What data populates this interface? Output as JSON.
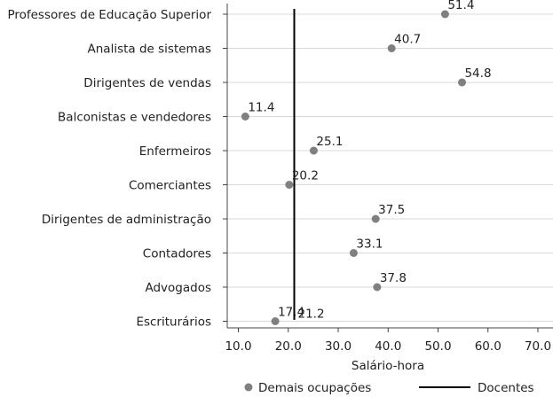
{
  "chart_data": {
    "type": "scatter",
    "orientation": "horizontal",
    "categories": [
      "Professores de Educação Superior",
      "Analista de sistemas",
      "Dirigentes de vendas",
      "Balconistas e vendedores",
      "Enfermeiros",
      "Comerciantes",
      "Dirigentes de administração",
      "Contadores",
      "Advogados",
      "Escriturários"
    ],
    "series": [
      {
        "name": "Demais ocupações",
        "marker": "circle",
        "color": "#808080",
        "values": [
          51.4,
          40.7,
          54.8,
          11.4,
          25.1,
          20.2,
          37.5,
          33.1,
          37.8,
          17.4
        ],
        "labels": [
          "51.4",
          "40.7",
          "54.8",
          "11.4",
          "25.1",
          "20.2",
          "37.5",
          "33.1",
          "37.8",
          "17.4"
        ]
      }
    ],
    "reference_line": {
      "name": "Docentes",
      "value": 21.2,
      "label": "21.2",
      "color": "#000000"
    },
    "xlabel": "Salário-hora",
    "xlim": [
      10,
      70
    ],
    "xticks": [
      "10.0",
      "20.0",
      "30.0",
      "40.0",
      "50.0",
      "60.0",
      "70.0"
    ],
    "grid": true,
    "legend": "bottom"
  }
}
